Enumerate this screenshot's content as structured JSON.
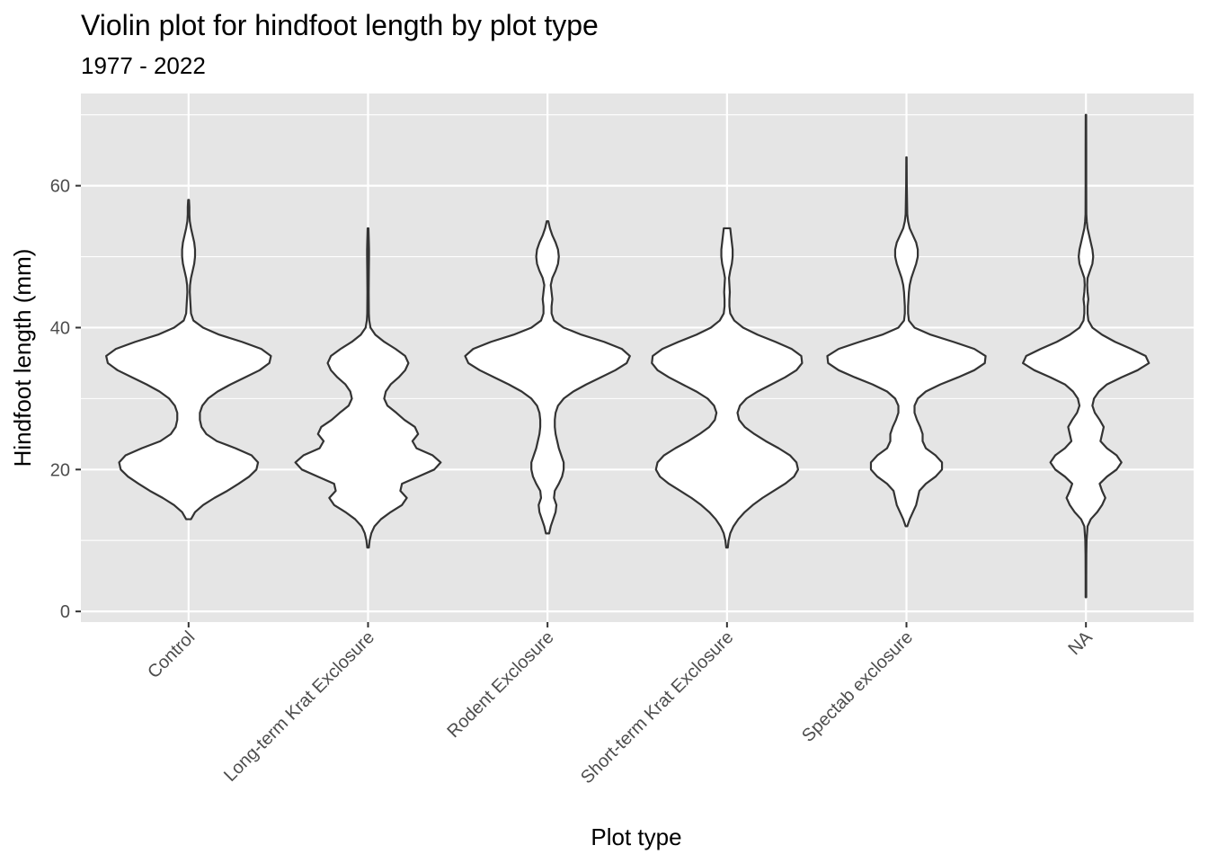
{
  "chart_data": {
    "type": "violin",
    "title": "Violin plot for hindfoot length by plot type",
    "subtitle": "1977 - 2022",
    "xlabel": "Plot type",
    "ylabel": "Hindfoot length (mm)",
    "ylim": [
      -1.5,
      73
    ],
    "yticks": [
      0,
      20,
      40,
      60
    ],
    "grid": true,
    "background": "#e5e5e5",
    "categories": [
      "Control",
      "Long-term Krat Exclosure",
      "Rodent Exclosure",
      "Short-term Krat Exclosure",
      "Spectab exclosure",
      "NA"
    ],
    "violins": [
      {
        "category": "Control",
        "min": 13,
        "max": 58,
        "profile": [
          [
            13,
            0.03
          ],
          [
            14,
            0.08
          ],
          [
            15,
            0.18
          ],
          [
            16,
            0.32
          ],
          [
            17,
            0.48
          ],
          [
            18,
            0.62
          ],
          [
            19,
            0.75
          ],
          [
            20,
            0.84
          ],
          [
            21,
            0.86
          ],
          [
            22,
            0.78
          ],
          [
            23,
            0.58
          ],
          [
            24,
            0.35
          ],
          [
            25,
            0.22
          ],
          [
            26,
            0.16
          ],
          [
            27,
            0.14
          ],
          [
            28,
            0.14
          ],
          [
            29,
            0.17
          ],
          [
            30,
            0.24
          ],
          [
            31,
            0.36
          ],
          [
            32,
            0.52
          ],
          [
            33,
            0.7
          ],
          [
            34,
            0.88
          ],
          [
            35,
            1.0
          ],
          [
            36,
            1.02
          ],
          [
            37,
            0.9
          ],
          [
            38,
            0.66
          ],
          [
            39,
            0.38
          ],
          [
            40,
            0.18
          ],
          [
            41,
            0.06
          ],
          [
            42,
            0.03
          ],
          [
            43,
            0.025
          ],
          [
            44,
            0.02
          ],
          [
            45,
            0.015
          ],
          [
            46,
            0.018
          ],
          [
            47,
            0.03
          ],
          [
            48,
            0.05
          ],
          [
            49,
            0.07
          ],
          [
            50,
            0.08
          ],
          [
            51,
            0.08
          ],
          [
            52,
            0.07
          ],
          [
            53,
            0.05
          ],
          [
            54,
            0.03
          ],
          [
            55,
            0.015
          ],
          [
            56,
            0.01
          ],
          [
            57,
            0.01
          ],
          [
            58,
            0.005
          ]
        ]
      },
      {
        "category": "Long-term Krat Exclosure",
        "min": 9,
        "max": 54,
        "profile": [
          [
            9,
            0.01
          ],
          [
            10,
            0.02
          ],
          [
            11,
            0.04
          ],
          [
            12,
            0.08
          ],
          [
            13,
            0.16
          ],
          [
            14,
            0.28
          ],
          [
            15,
            0.42
          ],
          [
            16,
            0.48
          ],
          [
            17,
            0.4
          ],
          [
            18,
            0.42
          ],
          [
            19,
            0.62
          ],
          [
            20,
            0.82
          ],
          [
            21,
            0.9
          ],
          [
            22,
            0.8
          ],
          [
            23,
            0.6
          ],
          [
            24,
            0.55
          ],
          [
            25,
            0.62
          ],
          [
            26,
            0.58
          ],
          [
            27,
            0.45
          ],
          [
            28,
            0.35
          ],
          [
            29,
            0.24
          ],
          [
            30,
            0.2
          ],
          [
            31,
            0.22
          ],
          [
            32,
            0.28
          ],
          [
            33,
            0.38
          ],
          [
            34,
            0.46
          ],
          [
            35,
            0.5
          ],
          [
            36,
            0.46
          ],
          [
            37,
            0.34
          ],
          [
            38,
            0.2
          ],
          [
            39,
            0.09
          ],
          [
            40,
            0.03
          ],
          [
            41,
            0.015
          ],
          [
            42,
            0.01
          ],
          [
            45,
            0.008
          ],
          [
            48,
            0.01
          ],
          [
            50,
            0.012
          ],
          [
            51,
            0.012
          ],
          [
            52,
            0.01
          ],
          [
            54,
            0.005
          ]
        ]
      },
      {
        "category": "Rodent Exclosure",
        "min": 11,
        "max": 55,
        "profile": [
          [
            11,
            0.02
          ],
          [
            12,
            0.04
          ],
          [
            13,
            0.07
          ],
          [
            14,
            0.1
          ],
          [
            15,
            0.11
          ],
          [
            16,
            0.08
          ],
          [
            17,
            0.09
          ],
          [
            18,
            0.14
          ],
          [
            19,
            0.18
          ],
          [
            20,
            0.2
          ],
          [
            21,
            0.2
          ],
          [
            22,
            0.17
          ],
          [
            23,
            0.14
          ],
          [
            24,
            0.12
          ],
          [
            25,
            0.1
          ],
          [
            26,
            0.09
          ],
          [
            27,
            0.09
          ],
          [
            28,
            0.1
          ],
          [
            29,
            0.13
          ],
          [
            30,
            0.2
          ],
          [
            31,
            0.32
          ],
          [
            32,
            0.48
          ],
          [
            33,
            0.66
          ],
          [
            34,
            0.84
          ],
          [
            35,
            0.98
          ],
          [
            36,
            1.02
          ],
          [
            37,
            0.92
          ],
          [
            38,
            0.7
          ],
          [
            39,
            0.42
          ],
          [
            40,
            0.2
          ],
          [
            41,
            0.08
          ],
          [
            42,
            0.05
          ],
          [
            43,
            0.05
          ],
          [
            44,
            0.06
          ],
          [
            45,
            0.05
          ],
          [
            46,
            0.04
          ],
          [
            47,
            0.06
          ],
          [
            48,
            0.1
          ],
          [
            49,
            0.13
          ],
          [
            50,
            0.14
          ],
          [
            51,
            0.13
          ],
          [
            52,
            0.1
          ],
          [
            53,
            0.06
          ],
          [
            54,
            0.03
          ],
          [
            55,
            0.01
          ]
        ]
      },
      {
        "category": "Short-term Krat Exclosure",
        "min": 9,
        "max": 54,
        "profile": [
          [
            9,
            0.01
          ],
          [
            10,
            0.02
          ],
          [
            11,
            0.04
          ],
          [
            12,
            0.08
          ],
          [
            13,
            0.14
          ],
          [
            14,
            0.22
          ],
          [
            15,
            0.32
          ],
          [
            16,
            0.44
          ],
          [
            17,
            0.58
          ],
          [
            18,
            0.72
          ],
          [
            19,
            0.83
          ],
          [
            20,
            0.88
          ],
          [
            21,
            0.86
          ],
          [
            22,
            0.78
          ],
          [
            23,
            0.64
          ],
          [
            24,
            0.48
          ],
          [
            25,
            0.34
          ],
          [
            26,
            0.22
          ],
          [
            27,
            0.15
          ],
          [
            28,
            0.13
          ],
          [
            29,
            0.16
          ],
          [
            30,
            0.24
          ],
          [
            31,
            0.38
          ],
          [
            32,
            0.55
          ],
          [
            33,
            0.72
          ],
          [
            34,
            0.86
          ],
          [
            35,
            0.93
          ],
          [
            36,
            0.92
          ],
          [
            37,
            0.8
          ],
          [
            38,
            0.6
          ],
          [
            39,
            0.38
          ],
          [
            40,
            0.2
          ],
          [
            41,
            0.09
          ],
          [
            42,
            0.04
          ],
          [
            43,
            0.03
          ],
          [
            44,
            0.03
          ],
          [
            45,
            0.035
          ],
          [
            46,
            0.03
          ],
          [
            47,
            0.025
          ],
          [
            48,
            0.04
          ],
          [
            49,
            0.06
          ],
          [
            50,
            0.07
          ],
          [
            51,
            0.07
          ],
          [
            52,
            0.06
          ],
          [
            53,
            0.05
          ],
          [
            54,
            0.04
          ]
        ]
      },
      {
        "category": "Spectab exclosure",
        "min": 12,
        "max": 64,
        "profile": [
          [
            12,
            0.01
          ],
          [
            13,
            0.04
          ],
          [
            14,
            0.08
          ],
          [
            15,
            0.12
          ],
          [
            16,
            0.14
          ],
          [
            17,
            0.16
          ],
          [
            18,
            0.24
          ],
          [
            19,
            0.36
          ],
          [
            20,
            0.44
          ],
          [
            21,
            0.44
          ],
          [
            22,
            0.36
          ],
          [
            23,
            0.24
          ],
          [
            24,
            0.2
          ],
          [
            25,
            0.2
          ],
          [
            26,
            0.17
          ],
          [
            27,
            0.13
          ],
          [
            28,
            0.1
          ],
          [
            29,
            0.1
          ],
          [
            30,
            0.14
          ],
          [
            31,
            0.24
          ],
          [
            32,
            0.42
          ],
          [
            33,
            0.64
          ],
          [
            34,
            0.84
          ],
          [
            35,
            0.97
          ],
          [
            36,
            0.98
          ],
          [
            37,
            0.84
          ],
          [
            38,
            0.58
          ],
          [
            39,
            0.3
          ],
          [
            40,
            0.1
          ],
          [
            41,
            0.03
          ],
          [
            42,
            0.02
          ],
          [
            43,
            0.02
          ],
          [
            44,
            0.025
          ],
          [
            45,
            0.03
          ],
          [
            46,
            0.04
          ],
          [
            47,
            0.06
          ],
          [
            48,
            0.09
          ],
          [
            49,
            0.12
          ],
          [
            50,
            0.14
          ],
          [
            51,
            0.14
          ],
          [
            52,
            0.12
          ],
          [
            53,
            0.08
          ],
          [
            54,
            0.04
          ],
          [
            55,
            0.02
          ],
          [
            56,
            0.01
          ],
          [
            60,
            0.004
          ],
          [
            64,
            0.002
          ]
        ]
      },
      {
        "category": "NA",
        "min": 2,
        "max": 70,
        "profile": [
          [
            2,
            0.004
          ],
          [
            5,
            0.004
          ],
          [
            8,
            0.005
          ],
          [
            10,
            0.008
          ],
          [
            12,
            0.02
          ],
          [
            13,
            0.06
          ],
          [
            14,
            0.14
          ],
          [
            15,
            0.2
          ],
          [
            16,
            0.24
          ],
          [
            17,
            0.2
          ],
          [
            18,
            0.17
          ],
          [
            19,
            0.26
          ],
          [
            20,
            0.38
          ],
          [
            21,
            0.44
          ],
          [
            22,
            0.38
          ],
          [
            23,
            0.26
          ],
          [
            24,
            0.18
          ],
          [
            25,
            0.2
          ],
          [
            26,
            0.22
          ],
          [
            27,
            0.17
          ],
          [
            28,
            0.11
          ],
          [
            29,
            0.08
          ],
          [
            30,
            0.1
          ],
          [
            31,
            0.16
          ],
          [
            32,
            0.26
          ],
          [
            33,
            0.44
          ],
          [
            34,
            0.64
          ],
          [
            35,
            0.78
          ],
          [
            36,
            0.74
          ],
          [
            37,
            0.56
          ],
          [
            38,
            0.36
          ],
          [
            39,
            0.2
          ],
          [
            40,
            0.08
          ],
          [
            41,
            0.03
          ],
          [
            42,
            0.02
          ],
          [
            43,
            0.02
          ],
          [
            44,
            0.03
          ],
          [
            45,
            0.02
          ],
          [
            46,
            0.015
          ],
          [
            47,
            0.02
          ],
          [
            48,
            0.05
          ],
          [
            49,
            0.08
          ],
          [
            50,
            0.09
          ],
          [
            51,
            0.08
          ],
          [
            52,
            0.06
          ],
          [
            53,
            0.04
          ],
          [
            54,
            0.02
          ],
          [
            55,
            0.01
          ],
          [
            56,
            0.005
          ],
          [
            60,
            0.004
          ],
          [
            65,
            0.004
          ],
          [
            70,
            0.003
          ]
        ]
      }
    ]
  }
}
